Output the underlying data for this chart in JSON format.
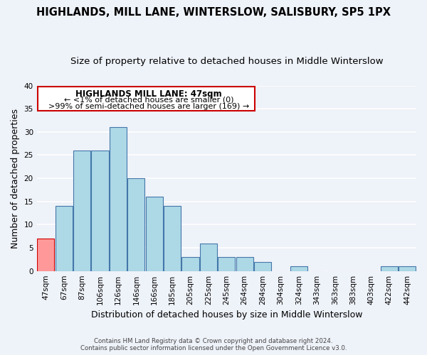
{
  "title": "HIGHLANDS, MILL LANE, WINTERSLOW, SALISBURY, SP5 1PX",
  "subtitle": "Size of property relative to detached houses in Middle Winterslow",
  "xlabel": "Distribution of detached houses by size in Middle Winterslow",
  "ylabel": "Number of detached properties",
  "bar_labels": [
    "47sqm",
    "67sqm",
    "87sqm",
    "106sqm",
    "126sqm",
    "146sqm",
    "166sqm",
    "185sqm",
    "205sqm",
    "225sqm",
    "245sqm",
    "264sqm",
    "284sqm",
    "304sqm",
    "324sqm",
    "343sqm",
    "363sqm",
    "383sqm",
    "403sqm",
    "422sqm",
    "442sqm"
  ],
  "bar_values": [
    7,
    14,
    26,
    26,
    31,
    20,
    16,
    14,
    3,
    6,
    3,
    3,
    2,
    0,
    1,
    0,
    0,
    0,
    0,
    1,
    1
  ],
  "bar_color": "#add8e6",
  "bar_edge_color": "#4477aa",
  "highlight_bar_index": 0,
  "highlight_bar_color": "#ff9999",
  "highlight_bar_edge_color": "#cc0000",
  "ylim": [
    0,
    40
  ],
  "yticks": [
    0,
    5,
    10,
    15,
    20,
    25,
    30,
    35,
    40
  ],
  "annotation_title": "HIGHLANDS MILL LANE: 47sqm",
  "annotation_line1": "← <1% of detached houses are smaller (0)",
  "annotation_line2": ">99% of semi-detached houses are larger (169) →",
  "annotation_box_edge_color": "#cc0000",
  "footer_line1": "Contains HM Land Registry data © Crown copyright and database right 2024.",
  "footer_line2": "Contains public sector information licensed under the Open Government Licence v3.0.",
  "bg_color": "#eef2f9",
  "grid_color": "#ffffff",
  "title_fontsize": 10.5,
  "subtitle_fontsize": 9.5,
  "xlabel_fontsize": 9,
  "ylabel_fontsize": 9,
  "tick_fontsize": 7.5,
  "ann_fontsize_title": 8.5,
  "ann_fontsize_body": 8
}
